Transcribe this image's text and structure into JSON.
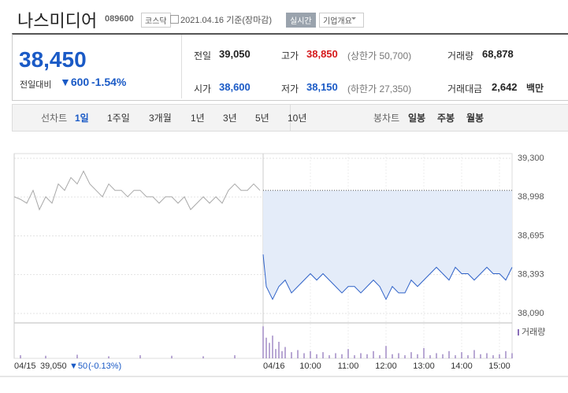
{
  "header": {
    "title": "나스미디어",
    "code": "089600",
    "market": "코스닥",
    "date": "2021.04.16 기준(장마감)",
    "realtime_button": "실시간",
    "company_button": "기업개요"
  },
  "summary": {
    "price": "38,450",
    "change_label": "전일대비",
    "change": "▼600",
    "change_rate": "-1.54%",
    "color": "#1a5ac6",
    "items": [
      {
        "label": "전일",
        "value": "39,050",
        "color": "#222"
      },
      {
        "label": "고가",
        "value": "38,850",
        "note": "(상한가 50,700)",
        "color": "#d5181a"
      },
      {
        "label": "거래량",
        "value": "68,878",
        "color": "#222"
      },
      {
        "label": "시가",
        "value": "38,600",
        "color": "#1a5ac6"
      },
      {
        "label": "저가",
        "value": "38,150",
        "note": "(하한가 27,350)",
        "color": "#1a5ac6"
      },
      {
        "label": "거래대금",
        "value": "2,642",
        "unit": "백만",
        "color": "#222"
      }
    ]
  },
  "tabs": {
    "line_label": "선차트",
    "line_periods": [
      "1일",
      "1주일",
      "3개월",
      "1년",
      "3년",
      "5년",
      "10년"
    ],
    "active_index": 0,
    "candle_label": "봉차트",
    "candle_periods": [
      "일봉",
      "주봉",
      "월봉"
    ]
  },
  "chart_data": {
    "type": "line",
    "xlim": [
      -20,
      770
    ],
    "ylim": [
      38016,
      39337
    ],
    "yticks": [
      {
        "value": 39300,
        "label": "39,300"
      },
      {
        "value": 38998,
        "label": "38,998"
      },
      {
        "value": 38695,
        "label": "38,695"
      },
      {
        "value": 38393,
        "label": "38,393"
      },
      {
        "value": 38090,
        "label": "38,090"
      }
    ],
    "xticks": [
      {
        "value": -20,
        "label": "04/15"
      },
      {
        "value": 375,
        "label": "04/16"
      },
      {
        "value": 450,
        "label": "10:00"
      },
      {
        "value": 510,
        "label": "11:00"
      },
      {
        "value": 570,
        "label": "12:00"
      },
      {
        "value": 630,
        "label": "13:00"
      },
      {
        "value": 690,
        "label": "14:00"
      },
      {
        "value": 750,
        "label": "15:00"
      }
    ],
    "grid": true,
    "ref_line": 39050,
    "series": [
      {
        "color": "#a8a8a8",
        "x": [
          -20,
          -10,
          0,
          10,
          20,
          30,
          40,
          50,
          60,
          70,
          80,
          90,
          100,
          110,
          120,
          130,
          140,
          150,
          160,
          170,
          180,
          190,
          200,
          210,
          220,
          230,
          240,
          250,
          260,
          270,
          280,
          290,
          300,
          310,
          320,
          330,
          340,
          350,
          360,
          370
        ],
        "values": [
          39000,
          38980,
          38950,
          39050,
          38900,
          39000,
          38950,
          39100,
          39050,
          39150,
          39100,
          39200,
          39100,
          39050,
          39000,
          39100,
          39050,
          39050,
          39000,
          39050,
          39050,
          39000,
          39000,
          38950,
          39000,
          39000,
          38950,
          39000,
          38900,
          38950,
          39000,
          38950,
          39000,
          38950,
          39050,
          39100,
          39050,
          39050,
          39100,
          39050
        ]
      },
      {
        "color": "#2f62c8",
        "fill": "#e4ecf9",
        "x": [
          375,
          380,
          390,
          400,
          410,
          420,
          430,
          440,
          450,
          460,
          470,
          480,
          490,
          500,
          510,
          520,
          530,
          540,
          550,
          560,
          570,
          580,
          590,
          600,
          610,
          620,
          630,
          640,
          650,
          660,
          670,
          680,
          690,
          700,
          710,
          720,
          730,
          740,
          750,
          760,
          770
        ],
        "values": [
          38550,
          38300,
          38200,
          38300,
          38350,
          38250,
          38300,
          38350,
          38400,
          38350,
          38400,
          38350,
          38300,
          38250,
          38300,
          38300,
          38250,
          38300,
          38350,
          38300,
          38200,
          38300,
          38250,
          38250,
          38350,
          38300,
          38350,
          38400,
          38450,
          38400,
          38350,
          38450,
          38400,
          38400,
          38350,
          38400,
          38450,
          38400,
          38400,
          38350,
          38450
        ]
      }
    ],
    "volume_label": "거래량",
    "volume": {
      "color": "#8a6fb8",
      "ylim": [
        0,
        3200
      ],
      "x": [
        -10,
        30,
        80,
        130,
        180,
        230,
        280,
        330,
        375,
        380,
        385,
        390,
        395,
        400,
        405,
        410,
        420,
        430,
        440,
        450,
        460,
        470,
        480,
        490,
        500,
        510,
        520,
        530,
        540,
        550,
        560,
        570,
        580,
        590,
        600,
        610,
        620,
        630,
        640,
        650,
        660,
        670,
        680,
        690,
        700,
        710,
        720,
        730,
        740,
        750,
        760,
        770
      ],
      "values": [
        300,
        250,
        350,
        200,
        300,
        250,
        200,
        300,
        3100,
        2000,
        1500,
        2200,
        900,
        1600,
        700,
        1100,
        600,
        800,
        500,
        700,
        400,
        600,
        300,
        500,
        400,
        900,
        300,
        500,
        400,
        700,
        300,
        1200,
        400,
        500,
        300,
        600,
        400,
        1000,
        300,
        500,
        400,
        700,
        300,
        600,
        300,
        800,
        400,
        500,
        300,
        400,
        700,
        500
      ]
    },
    "prev_info": {
      "close": "39,050",
      "change": "▼50",
      "rate": "(-0.13%)"
    }
  }
}
